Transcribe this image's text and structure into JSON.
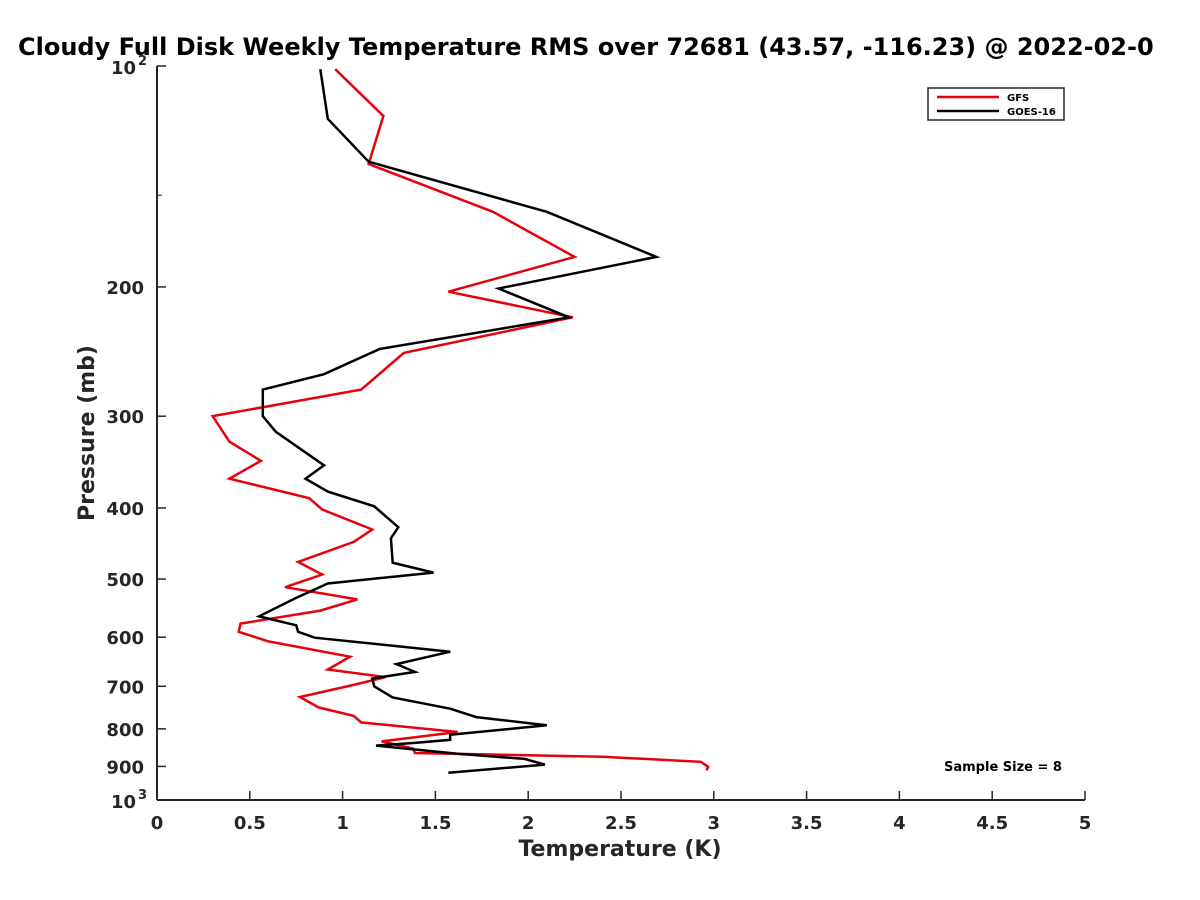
{
  "chart_data": {
    "type": "line",
    "title": "Cloudy Full Disk Weekly Temperature RMS over 72681 (43.57, -116.23) @ 2022-02-0",
    "xlabel": "Temperature (K)",
    "ylabel": "Pressure (mb)",
    "xlim": [
      0,
      5
    ],
    "ylim": [
      100,
      1000
    ],
    "y_scale": "log",
    "y_reversed": true,
    "x_ticks": [
      "0",
      "0.5",
      "1",
      "1.5",
      "2",
      "2.5",
      "3",
      "3.5",
      "4",
      "4.5",
      "5"
    ],
    "y_ticks": [
      {
        "value": 200,
        "label": "200"
      },
      {
        "value": 300,
        "label": "300"
      },
      {
        "value": 400,
        "label": "400"
      },
      {
        "value": 500,
        "label": "500"
      },
      {
        "value": 600,
        "label": "600"
      },
      {
        "value": 700,
        "label": "700"
      },
      {
        "value": 800,
        "label": "800"
      },
      {
        "value": 900,
        "label": "900"
      }
    ],
    "y_end_ticks": [
      {
        "value": 100,
        "base": "10",
        "exp": "2"
      },
      {
        "value": 1000,
        "base": "10",
        "exp": "3"
      }
    ],
    "legend_position": "top-right",
    "annotation": "Sample Size = 8",
    "series": [
      {
        "name": "GFS",
        "color": "#e8000b",
        "temperature": [
          0.96,
          1.22,
          1.14,
          1.81,
          2.25,
          1.57,
          2.24,
          1.33,
          1.1,
          0.3,
          0.39,
          0.56,
          0.39,
          0.82,
          0.89,
          1.16,
          1.06,
          0.76,
          0.89,
          0.69,
          1.08,
          0.88,
          0.45,
          0.44,
          0.6,
          1.04,
          0.92,
          1.23,
          1.06,
          0.77,
          0.87,
          1.06,
          1.1,
          1.62,
          1.21,
          1.38,
          1.39,
          2.4,
          2.93,
          2.97,
          2.96
        ],
        "pressure": [
          101,
          117,
          136,
          158,
          182,
          203,
          220,
          246,
          276,
          300,
          325,
          345,
          365,
          388,
          402,
          428,
          445,
          474,
          493,
          513,
          533,
          552,
          575,
          590,
          608,
          638,
          664,
          680,
          697,
          724,
          748,
          768,
          784,
          808,
          832,
          851,
          863,
          873,
          887,
          901,
          911
        ]
      },
      {
        "name": "GOES-16",
        "color": "#000000",
        "temperature": [
          0.88,
          0.92,
          1.14,
          2.1,
          2.69,
          1.84,
          2.22,
          1.2,
          0.9,
          0.57,
          0.57,
          0.64,
          0.9,
          0.8,
          0.92,
          1.17,
          1.3,
          1.26,
          1.27,
          1.49,
          0.92,
          0.74,
          0.55,
          0.75,
          0.76,
          0.85,
          1.58,
          1.29,
          1.39,
          1.16,
          1.17,
          1.27,
          1.58,
          1.72,
          2.1,
          1.58,
          1.58,
          1.39,
          1.18,
          1.62,
          1.98,
          2.09,
          1.57
        ],
        "pressure": [
          101,
          118,
          135,
          158,
          182,
          201,
          220,
          243,
          263,
          276,
          300,
          315,
          350,
          365,
          380,
          398,
          425,
          440,
          475,
          490,
          507,
          532,
          562,
          578,
          590,
          601,
          628,
          653,
          669,
          683,
          700,
          725,
          751,
          771,
          791,
          815,
          828,
          836,
          843,
          865,
          879,
          895,
          918
        ]
      }
    ]
  }
}
